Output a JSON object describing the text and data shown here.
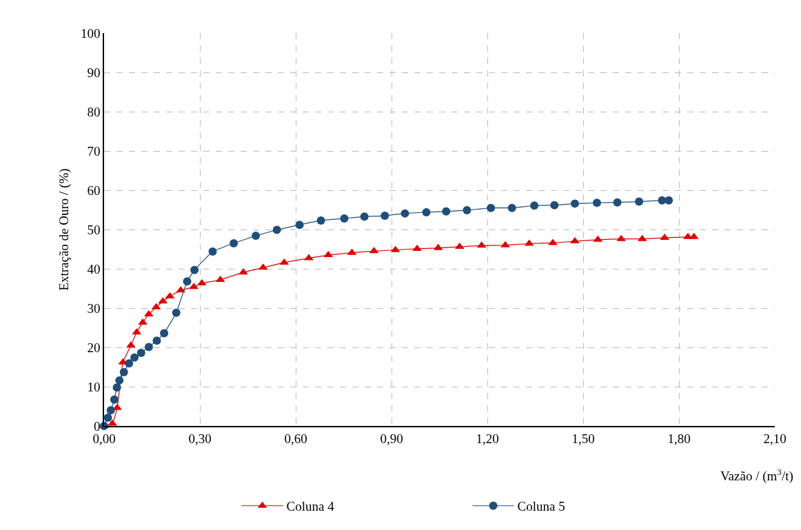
{
  "chart_data": {
    "type": "line",
    "xlabel": "Vazão / (m$^{3}$/t)",
    "ylabel": "Extração de Ouro / (%)",
    "xlim": [
      0,
      2.1
    ],
    "xticks": [
      {
        "value": 0,
        "label": "0,00"
      },
      {
        "value": 0.3,
        "label": "0,30"
      },
      {
        "value": 0.6,
        "label": "0,60"
      },
      {
        "value": 0.9,
        "label": "0,90"
      },
      {
        "value": 1.2,
        "label": "1,20"
      },
      {
        "value": 1.5,
        "label": "1,50"
      },
      {
        "value": 1.8,
        "label": "1,80"
      },
      {
        "value": 2.1,
        "label": "2,10"
      }
    ],
    "ylim": [
      0,
      100
    ],
    "yticks": [
      0,
      10,
      20,
      30,
      40,
      50,
      60,
      70,
      80,
      90,
      100
    ],
    "grid": true,
    "legend": "bottom",
    "line_style": "solid",
    "series": [
      {
        "name": "Coluna 4",
        "color": "#e00000",
        "marker": "triangle",
        "x": [
          0,
          0.026,
          0.041,
          0.059,
          0.084,
          0.102,
          0.121,
          0.14,
          0.163,
          0.184,
          0.206,
          0.24,
          0.281,
          0.306,
          0.364,
          0.436,
          0.498,
          0.564,
          0.641,
          0.702,
          0.776,
          0.845,
          0.912,
          0.98,
          1.046,
          1.113,
          1.182,
          1.256,
          1.331,
          1.405,
          1.474,
          1.546,
          1.619,
          1.685,
          1.755,
          1.828,
          1.847
        ],
        "values": [
          0,
          0.6,
          4.6,
          16.2,
          20.5,
          23.8,
          26.3,
          28.4,
          30.2,
          31.7,
          33,
          34.5,
          35.4,
          36.3,
          37.2,
          39.1,
          40.3,
          41.6,
          42.7,
          43.5,
          44.1,
          44.5,
          44.8,
          45.1,
          45.3,
          45.6,
          45.9,
          46,
          46.4,
          46.6,
          47,
          47.4,
          47.6,
          47.6,
          47.9,
          48.1,
          48.1
        ]
      },
      {
        "name": "Coluna 5",
        "color": "#1f4e79",
        "marker": "circle",
        "x": [
          0,
          0.012,
          0.021,
          0.032,
          0.04,
          0.048,
          0.062,
          0.078,
          0.095,
          0.116,
          0.14,
          0.165,
          0.188,
          0.226,
          0.26,
          0.283,
          0.34,
          0.406,
          0.475,
          0.541,
          0.612,
          0.679,
          0.752,
          0.815,
          0.879,
          0.942,
          1.009,
          1.071,
          1.136,
          1.211,
          1.277,
          1.347,
          1.41,
          1.474,
          1.543,
          1.607,
          1.675,
          1.747,
          1.768
        ],
        "values": [
          0,
          2.1,
          4,
          6.7,
          9.8,
          11.6,
          13.7,
          15.9,
          17.4,
          18.6,
          20.1,
          21.7,
          23.6,
          28.8,
          36.8,
          39.7,
          44.4,
          46.5,
          48.4,
          49.9,
          51.2,
          52.3,
          52.8,
          53.3,
          53.5,
          54.1,
          54.4,
          54.6,
          54.9,
          55.5,
          55.5,
          56.1,
          56.2,
          56.6,
          56.8,
          56.9,
          57.1,
          57.4,
          57.4
        ]
      }
    ]
  }
}
